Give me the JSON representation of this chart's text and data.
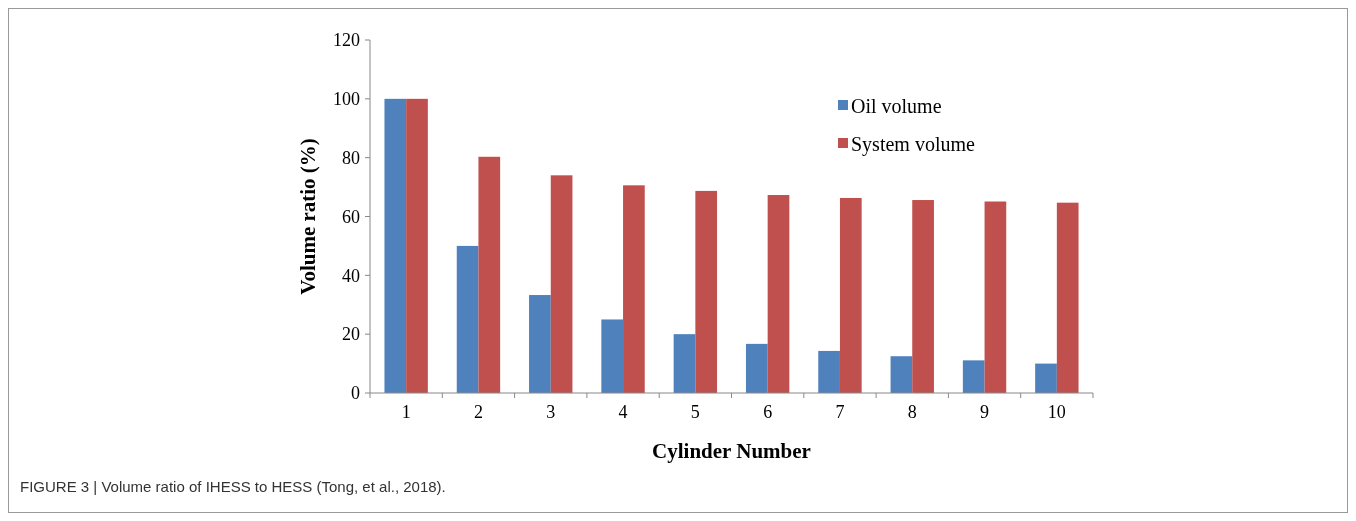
{
  "chart_data": {
    "type": "bar",
    "xlabel": "Cylinder Number",
    "ylabel": "Volume ratio (%)",
    "categories": [
      "1",
      "2",
      "3",
      "4",
      "5",
      "6",
      "7",
      "8",
      "9",
      "10"
    ],
    "series": [
      {
        "name": "Oil volume",
        "color": "#4f81bd",
        "values": [
          100,
          50,
          33.3,
          25,
          20,
          16.7,
          14.3,
          12.5,
          11.1,
          10
        ]
      },
      {
        "name": "System volume",
        "color": "#c0504d",
        "values": [
          100,
          80.3,
          74,
          70.6,
          68.7,
          67.3,
          66.3,
          65.6,
          65.1,
          64.7
        ]
      }
    ],
    "ylim": [
      0,
      120
    ],
    "yticks": [
      0,
      20,
      40,
      60,
      80,
      100,
      120
    ],
    "grid": false,
    "legend": "top right",
    "annotations": [
      "FIGURE 3 | Volume ratio of IHESS to HESS (Tong, et al., 2018)."
    ]
  }
}
